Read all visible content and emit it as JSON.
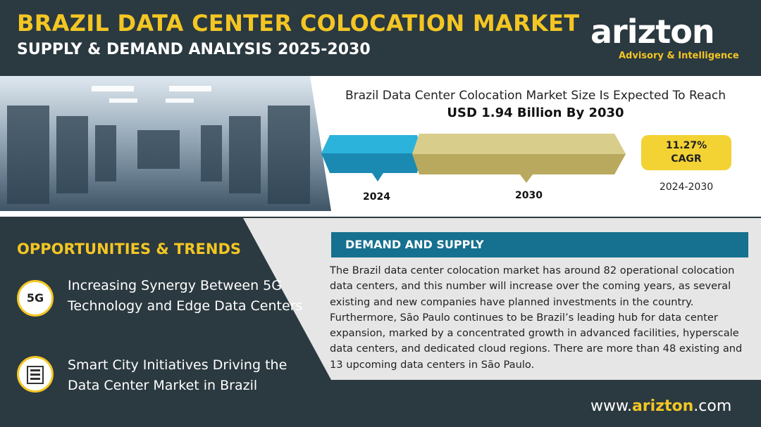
{
  "header": {
    "title": "BRAZIL DATA CENTER COLOCATION MARKET",
    "subtitle": "SUPPLY & DEMAND ANALYSIS 2025-2030"
  },
  "logo": {
    "name": "arizton",
    "tagline": "Advisory & Intelligence"
  },
  "market": {
    "heading": "Brazil Data Center Colocation Market Size Is Expected To Reach",
    "value": "USD 1.94 Billion By 2030",
    "start_year": "2024",
    "end_year": "2030"
  },
  "cagr": {
    "value": "11.27%",
    "label": "CAGR",
    "period": "2024-2030"
  },
  "opportunities": {
    "title": "OPPORTUNITIES & TRENDS",
    "items": [
      {
        "icon": "5G",
        "text": "Increasing Synergy Between 5G Technology and Edge Data Centers"
      },
      {
        "text": "Smart City Initiatives Driving the Data Center Market in Brazil"
      }
    ]
  },
  "demand": {
    "title": "DEMAND AND SUPPLY",
    "body": "The Brazil data center colocation market has around 82 operational colocation data centers, and this number will increase over the coming years, as several existing and new companies have planned investments in the country. Furthermore, São Paulo continues to be Brazil’s leading hub for data center expansion, marked by a concentrated growth in advanced facilities, hyperscale data centers, and dedicated cloud regions. There are more than 48 existing and 13 upcoming data centers in São Paulo."
  },
  "footer": {
    "prefix": "www.",
    "brand": "arizton",
    "suffix": ".com"
  }
}
